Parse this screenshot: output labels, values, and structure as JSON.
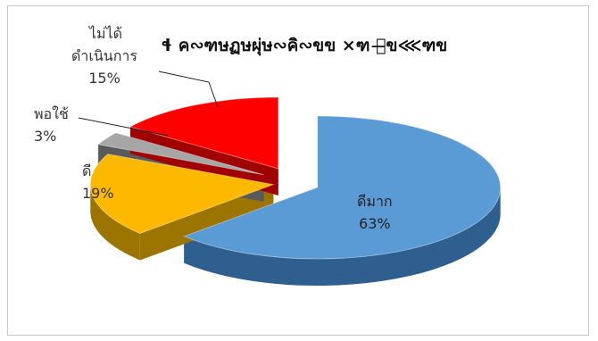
{
  "chart_data": {
    "type": "pie",
    "title": "ɬ ค∾ฑษฏษผุ่ษ∾คิ∾ขข ×ฑ ผ̶ข⋘ฑข",
    "categories": [
      "ดีมาก",
      "ดี",
      "พอใช้",
      "ไม่ได้ดำเนินการ"
    ],
    "values": [
      63,
      19,
      3,
      15
    ],
    "value_labels": [
      "63%",
      "19%",
      "3%",
      "15%"
    ],
    "legend": "none",
    "three_d": true,
    "exploded": true
  },
  "slices": [
    {
      "name": "ดีมาก",
      "value": 63,
      "top": "#5b9bd5",
      "side": "#2e5f8f"
    },
    {
      "name": "ดี",
      "value": 19,
      "top": "#fcb900",
      "side": "#9c7400"
    },
    {
      "name": "พอใช้",
      "value": 3,
      "top": "#a6a6a6",
      "side": "#5a5a5a"
    },
    {
      "name": "ไม่ได้ดำเนินการ",
      "value": 15,
      "top": "#ff0000",
      "side": "#a00000"
    }
  ],
  "labels": {
    "dimak": {
      "name": "ดีมาก",
      "pct": "63%"
    },
    "di": {
      "name": "ดี",
      "pct": "19%"
    },
    "phochai": {
      "name": "พอใช้",
      "pct": "3%"
    },
    "maidai": {
      "line1": "ไม่ได้",
      "line2": "ดำเนินการ",
      "pct": "15%"
    }
  }
}
